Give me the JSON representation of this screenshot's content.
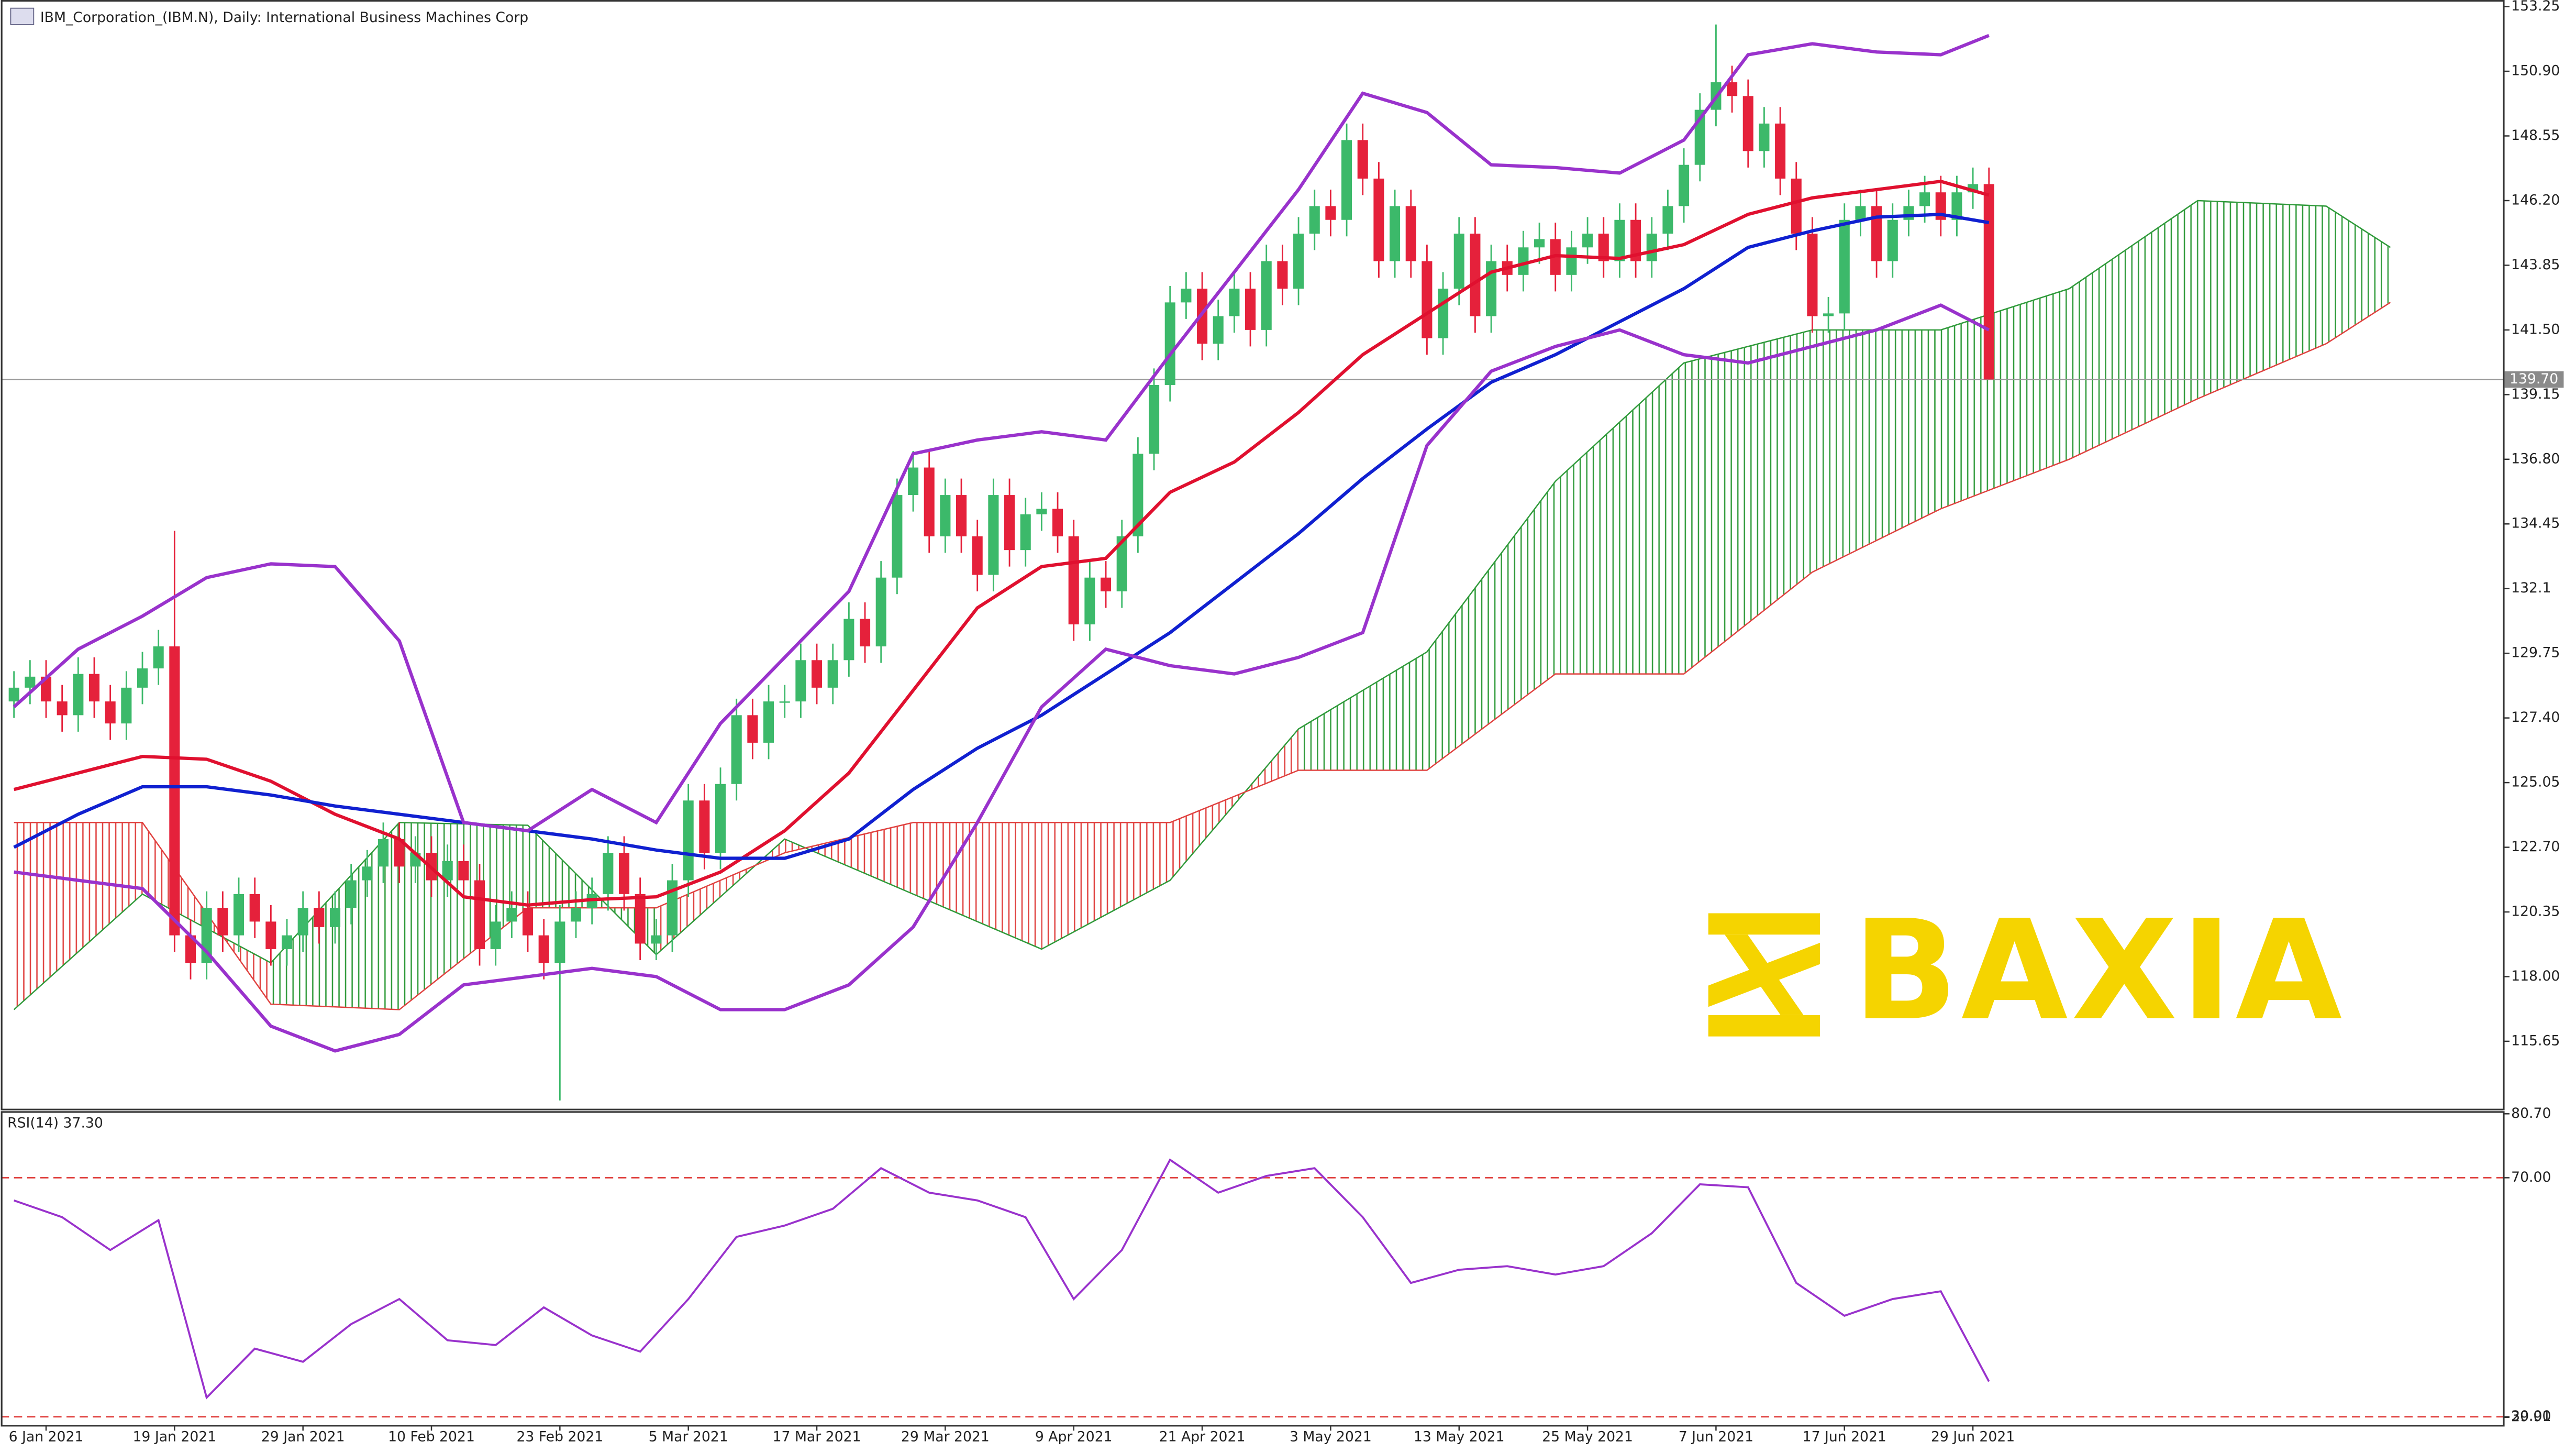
{
  "chart_data": [
    {
      "type": "candlestick",
      "title": "IBM_Corporation_(IBM.N), Daily:  International Business Machines Corp",
      "watermark": "BAXIA",
      "categories": [
        null,
        null,
        "6 Jan 2021",
        null,
        null,
        null,
        null,
        null,
        null,
        null,
        "19 Jan 2021",
        null,
        null,
        null,
        null,
        null,
        null,
        null,
        "29 Jan 2021",
        null,
        null,
        null,
        null,
        null,
        null,
        null,
        "10 Feb 2021",
        null,
        null,
        null,
        null,
        null,
        null,
        null,
        "23 Feb 2021",
        null,
        null,
        null,
        null,
        null,
        null,
        null,
        "5 Mar 2021",
        null,
        null,
        null,
        null,
        null,
        null,
        null,
        "17 Mar 2021",
        null,
        null,
        null,
        null,
        null,
        null,
        null,
        "29 Mar 2021",
        null,
        null,
        null,
        null,
        null,
        null,
        null,
        "9 Apr 2021",
        null,
        null,
        null,
        null,
        null,
        null,
        null,
        "21 Apr 2021",
        null,
        null,
        null,
        null,
        null,
        null,
        null,
        "3 May 2021",
        null,
        null,
        null,
        null,
        null,
        null,
        null,
        "13 May 2021",
        null,
        null,
        null,
        null,
        null,
        null,
        null,
        "25 May 2021",
        null,
        null,
        null,
        null,
        null,
        null,
        null,
        "7 Jun 2021",
        null,
        null,
        null,
        null,
        null,
        null,
        null,
        "17 Jun 2021",
        null,
        null,
        null,
        null,
        null,
        null,
        null,
        "29 Jun 2021",
        null
      ],
      "open": [
        128.0,
        128.5,
        128.9,
        128.0,
        127.5,
        129.0,
        128.0,
        127.2,
        128.5,
        129.2,
        130.0,
        119.5,
        118.5,
        120.5,
        119.5,
        121.0,
        120.0,
        119.0,
        119.5,
        120.5,
        119.8,
        120.5,
        121.5,
        122.0,
        123.0,
        122.0,
        122.5,
        121.5,
        122.2,
        121.5,
        119.0,
        120.0,
        120.5,
        119.5,
        118.5,
        120.0,
        120.5,
        121.0,
        122.5,
        121.0,
        119.2,
        119.5,
        121.5,
        124.4,
        122.5,
        125.0,
        127.5,
        126.5,
        128.0,
        128.0,
        129.5,
        128.5,
        129.5,
        131.0,
        130.0,
        132.5,
        135.5,
        136.5,
        134.0,
        135.5,
        134.0,
        132.6,
        135.5,
        133.5,
        134.8,
        135.0,
        134.0,
        130.8,
        132.5,
        132.0,
        134.0,
        137.0,
        139.5,
        142.5,
        143.0,
        141.0,
        142.0,
        143.0,
        141.5,
        144.0,
        143.0,
        145.0,
        146.0,
        145.5,
        148.4,
        147.0,
        144.0,
        146.0,
        144.0,
        141.2,
        143.0,
        145.0,
        142.0,
        144.0,
        143.5,
        144.5,
        144.8,
        143.5,
        144.5,
        145.0,
        144.0,
        145.5,
        144.0,
        145.0,
        146.0,
        147.5,
        149.5,
        150.5,
        150.0,
        148.0,
        149.0,
        147.0,
        145.0,
        142.0,
        142.1,
        145.5,
        146.0,
        144.0,
        145.5,
        146.0,
        146.5,
        145.5,
        146.5,
        146.8
      ],
      "high": [
        129.1,
        129.5,
        129.5,
        128.6,
        129.6,
        129.6,
        128.6,
        129.1,
        129.8,
        130.6,
        134.2,
        120.1,
        121.1,
        121.1,
        121.6,
        121.6,
        120.6,
        120.1,
        121.1,
        121.1,
        121.1,
        122.1,
        122.6,
        123.6,
        123.6,
        123.1,
        123.1,
        122.8,
        122.8,
        122.1,
        120.6,
        121.1,
        121.1,
        120.1,
        120.6,
        121.1,
        121.6,
        123.1,
        123.1,
        121.6,
        120.1,
        122.1,
        125.0,
        125.0,
        125.6,
        128.1,
        128.1,
        128.6,
        128.6,
        130.1,
        130.1,
        130.1,
        131.6,
        131.6,
        133.1,
        136.1,
        137.1,
        137.1,
        136.1,
        136.1,
        134.6,
        136.1,
        136.1,
        135.4,
        135.6,
        135.6,
        134.6,
        133.1,
        133.1,
        134.6,
        137.6,
        140.1,
        143.1,
        143.6,
        143.6,
        142.6,
        143.6,
        143.6,
        144.6,
        144.6,
        145.6,
        146.6,
        146.6,
        149.0,
        149.0,
        147.6,
        146.6,
        146.6,
        144.6,
        143.6,
        145.6,
        145.6,
        144.6,
        144.6,
        145.1,
        145.4,
        145.4,
        145.1,
        145.6,
        145.6,
        146.1,
        146.1,
        145.6,
        146.6,
        148.1,
        150.1,
        152.6,
        151.1,
        150.6,
        149.6,
        149.6,
        147.6,
        145.6,
        142.7,
        146.1,
        146.6,
        146.6,
        146.1,
        146.6,
        147.1,
        147.1,
        147.1,
        147.4,
        147.4
      ],
      "low": [
        127.4,
        127.9,
        127.4,
        126.9,
        126.9,
        127.4,
        126.6,
        126.6,
        127.9,
        128.6,
        118.9,
        117.9,
        117.9,
        118.9,
        118.9,
        119.4,
        118.4,
        118.4,
        118.9,
        119.2,
        119.2,
        119.9,
        120.9,
        121.4,
        121.4,
        121.4,
        120.9,
        120.9,
        120.9,
        118.4,
        118.4,
        119.4,
        118.9,
        117.9,
        113.5,
        119.4,
        119.9,
        120.4,
        120.4,
        118.6,
        118.6,
        118.9,
        120.9,
        121.9,
        121.9,
        124.4,
        125.9,
        125.9,
        127.4,
        127.4,
        127.9,
        127.9,
        128.9,
        129.4,
        129.4,
        131.9,
        134.9,
        133.4,
        133.4,
        133.4,
        132.0,
        132.0,
        132.9,
        132.9,
        134.2,
        133.4,
        130.2,
        130.2,
        131.4,
        131.4,
        133.4,
        136.4,
        138.9,
        141.9,
        140.4,
        140.4,
        141.4,
        140.9,
        140.9,
        142.4,
        142.4,
        144.4,
        144.9,
        144.9,
        146.4,
        143.4,
        143.4,
        143.4,
        140.6,
        140.6,
        142.4,
        141.4,
        141.4,
        142.9,
        142.9,
        143.9,
        142.9,
        142.9,
        143.9,
        143.4,
        143.4,
        143.4,
        143.4,
        144.4,
        145.4,
        146.9,
        148.9,
        149.4,
        147.4,
        147.4,
        146.4,
        144.4,
        141.4,
        141.4,
        141.5,
        144.9,
        143.4,
        143.4,
        144.9,
        145.4,
        144.9,
        144.9,
        145.9,
        139.7
      ],
      "close": [
        128.5,
        128.9,
        128.0,
        127.5,
        129.0,
        128.0,
        127.2,
        128.5,
        129.2,
        130.0,
        119.5,
        118.5,
        120.5,
        119.5,
        121.0,
        120.0,
        119.0,
        119.5,
        120.5,
        119.8,
        120.5,
        121.5,
        122.0,
        123.0,
        122.0,
        122.5,
        121.5,
        122.2,
        121.5,
        119.0,
        120.0,
        120.5,
        119.5,
        118.5,
        120.0,
        120.5,
        121.0,
        122.5,
        121.0,
        119.2,
        119.5,
        121.5,
        124.4,
        122.5,
        125.0,
        127.5,
        126.5,
        128.0,
        128.0,
        129.5,
        128.5,
        129.5,
        131.0,
        130.0,
        132.5,
        135.5,
        136.5,
        134.0,
        135.5,
        134.0,
        132.6,
        135.5,
        133.5,
        134.8,
        135.0,
        134.0,
        130.8,
        132.5,
        132.0,
        134.0,
        137.0,
        139.5,
        142.5,
        143.0,
        141.0,
        142.0,
        143.0,
        141.5,
        144.0,
        143.0,
        145.0,
        146.0,
        145.5,
        148.4,
        147.0,
        144.0,
        146.0,
        144.0,
        141.2,
        143.0,
        145.0,
        142.0,
        144.0,
        143.5,
        144.5,
        144.8,
        143.5,
        144.5,
        145.0,
        144.0,
        145.5,
        144.0,
        145.0,
        146.0,
        147.5,
        149.5,
        150.5,
        150.0,
        148.0,
        149.0,
        147.0,
        145.0,
        142.0,
        142.1,
        145.5,
        146.0,
        144.0,
        145.5,
        146.0,
        146.5,
        145.5,
        146.5,
        146.8,
        139.7
      ],
      "up_color": "#3cb96a",
      "down_color": "#e5213b",
      "lines": [
        {
          "color": "#e0102f",
          "x": [
            0,
            4,
            8,
            12,
            16,
            20,
            24,
            28,
            32,
            36,
            40,
            44,
            48,
            52,
            56,
            60,
            64,
            68,
            72,
            76,
            80,
            84,
            88,
            92,
            96,
            100,
            104,
            108,
            112,
            116,
            120,
            123
          ],
          "values": [
            124.8,
            125.4,
            126.0,
            125.9,
            125.1,
            123.9,
            123.0,
            120.9,
            120.6,
            120.8,
            120.9,
            121.8,
            123.3,
            125.4,
            128.4,
            131.4,
            132.9,
            133.2,
            135.6,
            136.7,
            138.5,
            140.6,
            142.1,
            143.6,
            144.2,
            144.1,
            144.6,
            145.7,
            146.3,
            146.6,
            146.9,
            146.4
          ]
        },
        {
          "color": "#1020d0",
          "x": [
            0,
            4,
            8,
            12,
            16,
            20,
            24,
            28,
            32,
            36,
            40,
            44,
            48,
            52,
            56,
            60,
            64,
            68,
            72,
            76,
            80,
            84,
            88,
            92,
            96,
            100,
            104,
            108,
            112,
            116,
            120,
            123
          ],
          "values": [
            122.7,
            123.9,
            124.9,
            124.9,
            124.6,
            124.2,
            123.9,
            123.6,
            123.3,
            123.0,
            122.6,
            122.3,
            122.3,
            123.0,
            124.8,
            126.3,
            127.5,
            129.0,
            130.5,
            132.3,
            134.1,
            136.1,
            137.9,
            139.6,
            140.6,
            141.8,
            143.0,
            144.5,
            145.1,
            145.6,
            145.7,
            145.4
          ]
        },
        {
          "color": "#9932cc",
          "x": [
            0,
            4,
            8,
            12,
            16,
            20,
            24,
            28,
            32,
            36,
            40,
            44,
            48,
            52,
            56,
            60,
            64,
            68,
            72,
            76,
            80,
            84,
            88,
            92,
            96,
            100,
            104,
            108,
            112,
            116,
            120,
            123
          ],
          "values": [
            127.8,
            129.9,
            131.1,
            132.5,
            133.0,
            132.9,
            130.2,
            123.6,
            123.3,
            124.8,
            123.6,
            127.2,
            129.6,
            132.0,
            137.0,
            137.5,
            137.8,
            137.5,
            140.6,
            143.6,
            146.6,
            150.1,
            149.4,
            147.5,
            147.4,
            147.2,
            148.4,
            151.5,
            151.9,
            151.6,
            151.5,
            152.2
          ]
        },
        {
          "color": "#9932cc",
          "x": [
            0,
            4,
            8,
            12,
            16,
            20,
            24,
            28,
            32,
            36,
            40,
            44,
            48,
            52,
            56,
            60,
            64,
            68,
            72,
            76,
            80,
            84,
            88,
            92,
            96,
            100,
            104,
            108,
            112,
            116,
            120,
            123
          ],
          "values": [
            121.8,
            121.5,
            121.2,
            118.9,
            116.2,
            115.3,
            115.9,
            117.7,
            118.0,
            118.3,
            118.0,
            116.8,
            116.8,
            117.7,
            119.8,
            123.6,
            127.8,
            129.9,
            129.3,
            129.0,
            129.6,
            130.5,
            137.3,
            140.0,
            140.9,
            141.5,
            140.6,
            140.3,
            140.9,
            141.5,
            142.4,
            141.5
          ]
        }
      ],
      "cloud": {
        "x": [
          0,
          8,
          16,
          24,
          32,
          40,
          48,
          56,
          64,
          72,
          80,
          88,
          96,
          104,
          112,
          120,
          128,
          136,
          144,
          148
        ],
        "span_a": [
          116.8,
          121.0,
          118.5,
          123.6,
          123.5,
          118.8,
          123.0,
          121.0,
          119.0,
          121.5,
          127.0,
          129.8,
          136.0,
          140.3,
          141.5,
          141.5,
          143.0,
          146.2,
          146.0,
          144.5
        ],
        "span_b": [
          123.6,
          123.6,
          117.0,
          116.8,
          120.5,
          120.5,
          122.5,
          123.6,
          123.6,
          123.6,
          125.5,
          125.5,
          129.0,
          129.0,
          132.7,
          135.0,
          136.8,
          139.0,
          141.0,
          142.5
        ],
        "up_color": "#2f9a3a",
        "down_color": "#e0413f"
      },
      "last_price": {
        "value": 139.7,
        "label": "139.70"
      },
      "ylim": [
        113.2,
        153.43
      ],
      "yticks": [
        115.65,
        {
          "value": 118,
          "label": "118.00"
        },
        120.35,
        {
          "value": 122.7,
          "label": "122.70"
        },
        125.05,
        {
          "value": 127.4,
          "label": "127.40"
        },
        129.75,
        132.1,
        134.45,
        {
          "value": 136.8,
          "label": "136.80"
        },
        139.15,
        {
          "value": 141.5,
          "label": "141.50"
        },
        143.85,
        {
          "value": 146.2,
          "label": "146.20"
        },
        148.55,
        {
          "value": 150.9,
          "label": "150.90"
        },
        153.25
      ]
    },
    {
      "type": "line",
      "title": "RSI(14) 37.30",
      "color": "#9932cc",
      "x": [
        0,
        3,
        6,
        9,
        12,
        15,
        18,
        21,
        24,
        27,
        30,
        33,
        36,
        39,
        42,
        45,
        48,
        51,
        54,
        57,
        60,
        63,
        66,
        69,
        72,
        75,
        78,
        81,
        84,
        87,
        90,
        93,
        96,
        99,
        102,
        105,
        108,
        111,
        114,
        117,
        120,
        123
      ],
      "values": [
        66.2,
        63.4,
        57.9,
        62.9,
        33.2,
        41.4,
        39.2,
        45.5,
        49.7,
        42.8,
        42.0,
        48.3,
        43.6,
        40.9,
        49.7,
        60.1,
        62.0,
        64.8,
        71.6,
        67.5,
        66.2,
        63.4,
        49.7,
        57.9,
        73.0,
        67.5,
        70.3,
        71.6,
        63.4,
        52.4,
        54.6,
        55.2,
        53.8,
        55.2,
        60.7,
        68.9,
        68.4,
        52.4,
        46.9,
        49.7,
        51.0,
        35.9
      ],
      "levels": [
        30,
        70
      ],
      "level_color": "#e0413f",
      "ylim": [
        28.5,
        81.0
      ],
      "yticks": [
        {
          "value": 80.7,
          "label": "80.70"
        },
        {
          "value": 70,
          "label": "70.00"
        },
        29.91,
        {
          "value": 30,
          "label": "30.00"
        }
      ]
    }
  ]
}
